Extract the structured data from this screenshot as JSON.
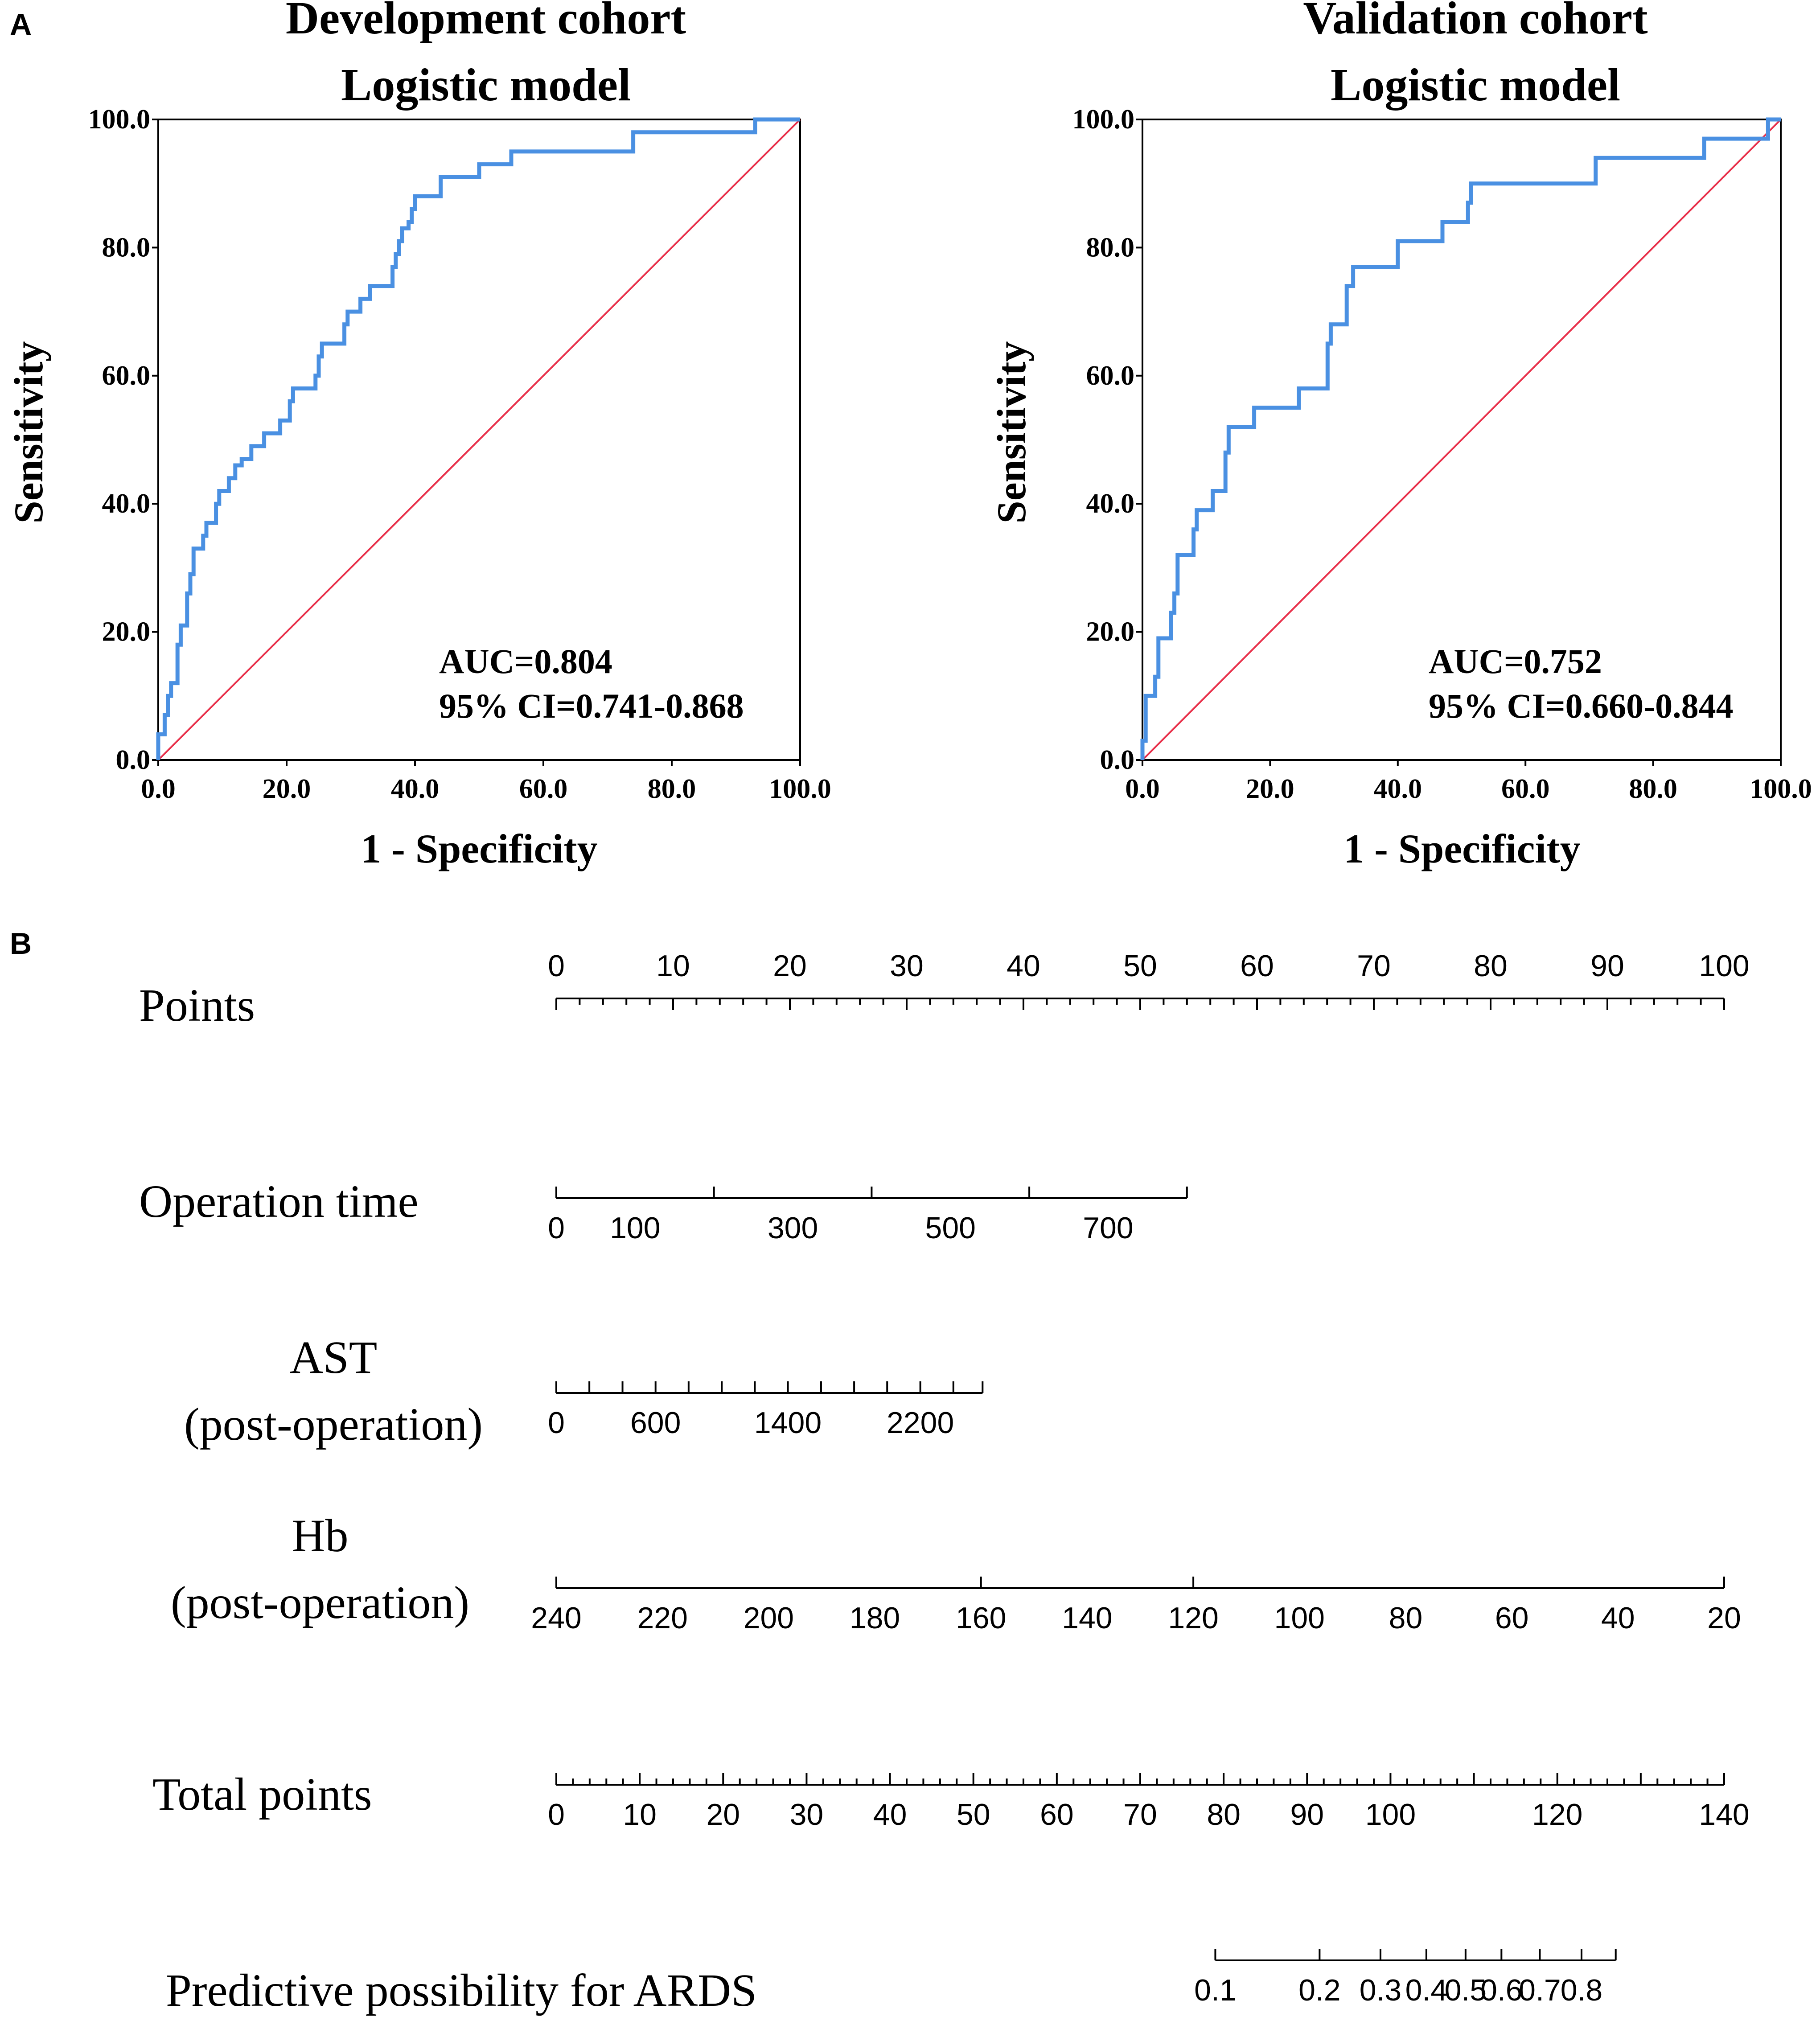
{
  "panel_labels": {
    "a": "A",
    "b": "B"
  },
  "colors": {
    "roc_curve": "#4a90e2",
    "reference_line": "#e8304a",
    "ink": "#000000"
  },
  "chart_data": [
    {
      "type": "line",
      "id": "dev-roc",
      "title_line1": "Development cohort",
      "title_line2": "Logistic model",
      "xlabel": "1 - Specificity",
      "ylabel": "Sensitivity",
      "xlim": [
        0,
        100
      ],
      "ylim": [
        0,
        100
      ],
      "ticks": [
        "0.0",
        "20.0",
        "40.0",
        "60.0",
        "80.0",
        "100.0"
      ],
      "auc_text": "AUC=0.804",
      "ci_text": "95% CI=0.741-0.868",
      "series": [
        {
          "name": "ROC curve",
          "points": [
            [
              0,
              0
            ],
            [
              0,
              4
            ],
            [
              1,
              4
            ],
            [
              1,
              7
            ],
            [
              1.5,
              7
            ],
            [
              1.5,
              10
            ],
            [
              2,
              10
            ],
            [
              2,
              12
            ],
            [
              3,
              12
            ],
            [
              3,
              18
            ],
            [
              3.5,
              18
            ],
            [
              3.5,
              21
            ],
            [
              4.5,
              21
            ],
            [
              4.5,
              26
            ],
            [
              5,
              26
            ],
            [
              5,
              29
            ],
            [
              5.5,
              29
            ],
            [
              5.5,
              33
            ],
            [
              7,
              33
            ],
            [
              7,
              35
            ],
            [
              7.5,
              35
            ],
            [
              7.5,
              37
            ],
            [
              9,
              37
            ],
            [
              9,
              40
            ],
            [
              9.5,
              40
            ],
            [
              9.5,
              42
            ],
            [
              11,
              42
            ],
            [
              11,
              44
            ],
            [
              12,
              44
            ],
            [
              12,
              46
            ],
            [
              13,
              46
            ],
            [
              13,
              47
            ],
            [
              14.5,
              47
            ],
            [
              14.5,
              49
            ],
            [
              16.5,
              49
            ],
            [
              16.5,
              51
            ],
            [
              19,
              51
            ],
            [
              19,
              53
            ],
            [
              20.5,
              53
            ],
            [
              20.5,
              56
            ],
            [
              21,
              56
            ],
            [
              21,
              58
            ],
            [
              24.5,
              58
            ],
            [
              24.5,
              60
            ],
            [
              25,
              60
            ],
            [
              25,
              63
            ],
            [
              25.5,
              63
            ],
            [
              25.5,
              65
            ],
            [
              29,
              65
            ],
            [
              29,
              68
            ],
            [
              29.5,
              68
            ],
            [
              29.5,
              70
            ],
            [
              31.5,
              70
            ],
            [
              31.5,
              72
            ],
            [
              33,
              72
            ],
            [
              33,
              74
            ],
            [
              36.5,
              74
            ],
            [
              36.5,
              77
            ],
            [
              37,
              77
            ],
            [
              37,
              79
            ],
            [
              37.5,
              79
            ],
            [
              37.5,
              81
            ],
            [
              38,
              81
            ],
            [
              38,
              83
            ],
            [
              39,
              83
            ],
            [
              39,
              84
            ],
            [
              39.5,
              84
            ],
            [
              39.5,
              86
            ],
            [
              40,
              86
            ],
            [
              40,
              88
            ],
            [
              44,
              88
            ],
            [
              44,
              91
            ],
            [
              50,
              91
            ],
            [
              50,
              93
            ],
            [
              55,
              93
            ],
            [
              55,
              95
            ],
            [
              74,
              95
            ],
            [
              74,
              98
            ],
            [
              93,
              98
            ],
            [
              93,
              100
            ],
            [
              100,
              100
            ]
          ]
        },
        {
          "name": "Reference",
          "points": [
            [
              0,
              0
            ],
            [
              100,
              100
            ]
          ]
        }
      ]
    },
    {
      "type": "line",
      "id": "val-roc",
      "title_line1": "Validation cohort",
      "title_line2": "Logistic model",
      "xlabel": "1 - Specificity",
      "ylabel": "Sensitivity",
      "xlim": [
        0,
        100
      ],
      "ylim": [
        0,
        100
      ],
      "ticks": [
        "0.0",
        "20.0",
        "40.0",
        "60.0",
        "80.0",
        "100.0"
      ],
      "auc_text": "AUC=0.752",
      "ci_text": "95% CI=0.660-0.844",
      "series": [
        {
          "name": "ROC curve",
          "points": [
            [
              0,
              0
            ],
            [
              0,
              3
            ],
            [
              0.5,
              3
            ],
            [
              0.5,
              10
            ],
            [
              2,
              10
            ],
            [
              2,
              13
            ],
            [
              2.5,
              13
            ],
            [
              2.5,
              19
            ],
            [
              4.5,
              19
            ],
            [
              4.5,
              23
            ],
            [
              5,
              23
            ],
            [
              5,
              26
            ],
            [
              5.5,
              26
            ],
            [
              5.5,
              32
            ],
            [
              8,
              32
            ],
            [
              8,
              36
            ],
            [
              8.5,
              36
            ],
            [
              8.5,
              39
            ],
            [
              11,
              39
            ],
            [
              11,
              42
            ],
            [
              13,
              42
            ],
            [
              13,
              48
            ],
            [
              13.5,
              48
            ],
            [
              13.5,
              52
            ],
            [
              17.5,
              52
            ],
            [
              17.5,
              55
            ],
            [
              24.5,
              55
            ],
            [
              24.5,
              58
            ],
            [
              29,
              58
            ],
            [
              29,
              65
            ],
            [
              29.5,
              65
            ],
            [
              29.5,
              68
            ],
            [
              32,
              68
            ],
            [
              32,
              74
            ],
            [
              33,
              74
            ],
            [
              33,
              77
            ],
            [
              40,
              77
            ],
            [
              40,
              81
            ],
            [
              47,
              81
            ],
            [
              47,
              84
            ],
            [
              51,
              84
            ],
            [
              51,
              87
            ],
            [
              51.5,
              87
            ],
            [
              51.5,
              90
            ],
            [
              71,
              90
            ],
            [
              71,
              94
            ],
            [
              88,
              94
            ],
            [
              88,
              97
            ],
            [
              98,
              97
            ],
            [
              98,
              100
            ],
            [
              100,
              100
            ]
          ]
        },
        {
          "name": "Reference",
          "points": [
            [
              0,
              0
            ],
            [
              100,
              100
            ]
          ]
        }
      ]
    },
    {
      "type": "table",
      "id": "nomogram",
      "rows": [
        {
          "label_lines": [
            "Points"
          ],
          "scale": [
            0,
            100
          ],
          "span": [
            0,
            100
          ],
          "minor_step": 2,
          "major_step": 10,
          "tick_labels": [
            [
              "0",
              0
            ],
            [
              "10",
              10
            ],
            [
              "20",
              20
            ],
            [
              "30",
              30
            ],
            [
              "40",
              40
            ],
            [
              "50",
              50
            ],
            [
              "60",
              60
            ],
            [
              "70",
              70
            ],
            [
              "80",
              80
            ],
            [
              "90",
              90
            ],
            [
              "100",
              100
            ]
          ]
        },
        {
          "label_lines": [
            "Operation time"
          ],
          "scale": [
            0,
            100
          ],
          "span": [
            0,
            54
          ],
          "ticks": [
            0,
            13.5,
            27,
            40.5,
            54
          ],
          "tick_labels": [
            [
              "0",
              0
            ],
            [
              "100",
              6.75
            ],
            [
              "300",
              20.25
            ],
            [
              "500",
              33.75
            ],
            [
              "700",
              47.25
            ]
          ]
        },
        {
          "label_lines": [
            "AST",
            "(post-operation)"
          ],
          "scale": [
            0,
            100
          ],
          "span": [
            0,
            36.5
          ],
          "ticks": [
            0,
            2.83,
            5.67,
            8.5,
            11.33,
            14.17,
            17,
            19.83,
            22.67,
            25.5,
            28.33,
            31.17,
            34,
            36.5
          ],
          "tick_labels": [
            [
              "0",
              0
            ],
            [
              "600",
              8.5
            ],
            [
              "1400",
              19.83
            ],
            [
              "2200",
              31.17
            ]
          ]
        },
        {
          "label_lines": [
            "Hb",
            "(post-operation)"
          ],
          "scale": [
            240,
            20
          ],
          "span": [
            240,
            20
          ],
          "ticks": [
            240,
            160,
            120,
            20
          ],
          "tick_labels": [
            [
              "240",
              240
            ],
            [
              "220",
              220
            ],
            [
              "200",
              200
            ],
            [
              "180",
              180
            ],
            [
              "160",
              160
            ],
            [
              "140",
              140
            ],
            [
              "120",
              120
            ],
            [
              "100",
              100
            ],
            [
              "80",
              80
            ],
            [
              "60",
              60
            ],
            [
              "40",
              40
            ],
            [
              "20",
              20
            ]
          ]
        },
        {
          "label_lines": [
            "Total points"
          ],
          "scale": [
            0,
            140
          ],
          "span": [
            0,
            140
          ],
          "minor_step": 2,
          "major_step": 10,
          "tick_labels": [
            [
              "0",
              0
            ],
            [
              "10",
              10
            ],
            [
              "20",
              20
            ],
            [
              "30",
              30
            ],
            [
              "40",
              40
            ],
            [
              "50",
              50
            ],
            [
              "60",
              60
            ],
            [
              "70",
              70
            ],
            [
              "80",
              80
            ],
            [
              "90",
              90
            ],
            [
              "100",
              100
            ],
            [
              "120",
              120
            ],
            [
              "140",
              140
            ]
          ]
        },
        {
          "label_lines": [
            "Predictive possibility  for ARDS"
          ],
          "scale": [
            0,
            140
          ],
          "span": [
            79,
            127
          ],
          "ticks": [
            79,
            91.5,
            98.8,
            104.3,
            109,
            113.3,
            117.9,
            122.9,
            127
          ],
          "tick_labels": [
            [
              "0.1",
              79
            ],
            [
              "0.2",
              91.5
            ],
            [
              "0.3",
              98.8
            ],
            [
              "0.4",
              104.3
            ],
            [
              "0.5",
              109
            ],
            [
              "0.6",
              113.3
            ],
            [
              "0.7",
              117.9
            ],
            [
              "0.8",
              122.9
            ]
          ]
        }
      ]
    }
  ]
}
